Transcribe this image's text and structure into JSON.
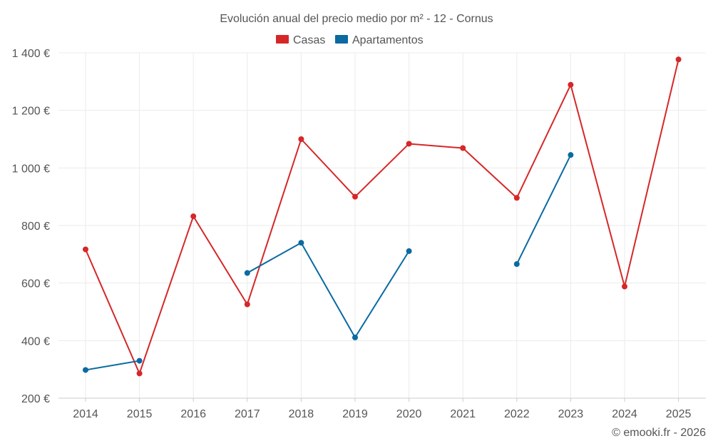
{
  "chart_data": {
    "type": "line",
    "title": "Evolución anual del precio medio por m² - 12 - Cornus",
    "categories": [
      "2014",
      "2015",
      "2016",
      "2017",
      "2018",
      "2019",
      "2020",
      "2021",
      "2022",
      "2023",
      "2024",
      "2025"
    ],
    "y_ticks": [
      "200 €",
      "400 €",
      "600 €",
      "800 €",
      "1 000 €",
      "1 200 €",
      "1 400 €"
    ],
    "ylim": [
      200,
      1400
    ],
    "grid": true,
    "legend_position": "top-center",
    "series": [
      {
        "name": "Casas",
        "color": "#d62728",
        "values": [
          717,
          286,
          832,
          526,
          1100,
          900,
          1084,
          1069,
          896,
          1289,
          588,
          1377
        ]
      },
      {
        "name": "Apartamentos",
        "color": "#0a6aa1",
        "values": [
          298,
          330,
          null,
          635,
          740,
          411,
          711,
          null,
          666,
          1045,
          null,
          null
        ]
      }
    ],
    "credit": "© emooki.fr - 2026"
  }
}
